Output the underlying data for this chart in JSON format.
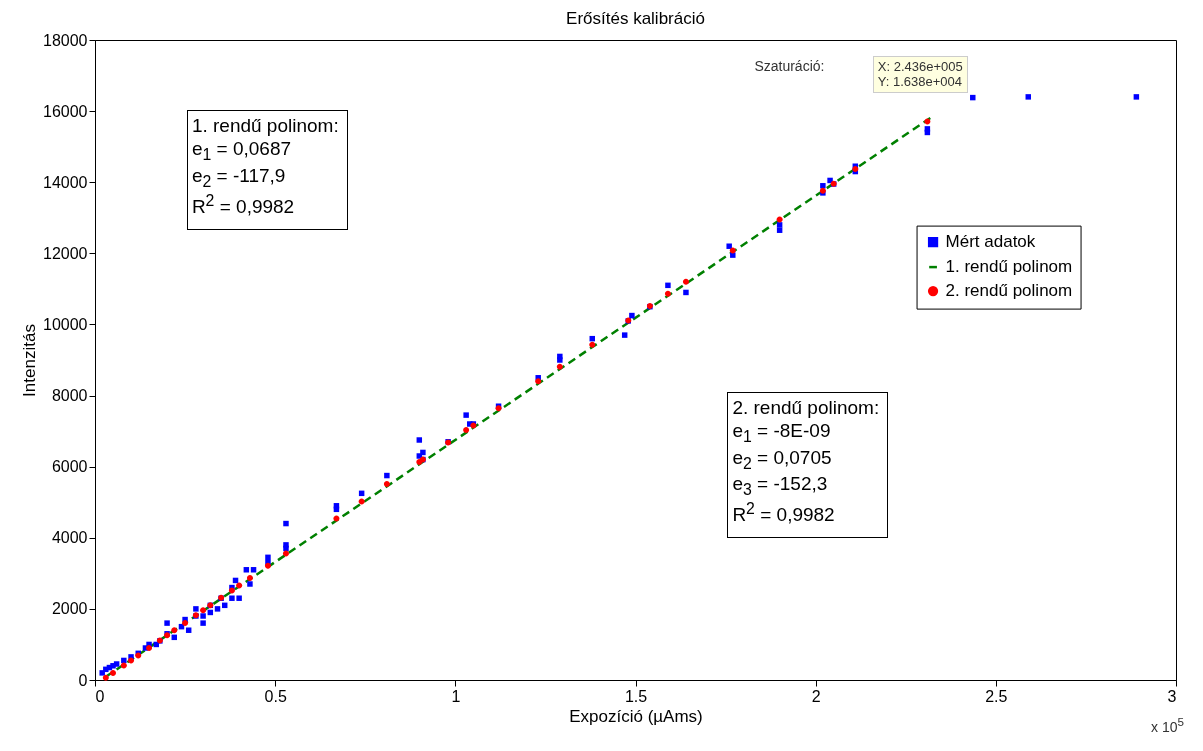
{
  "chart_data": {
    "type": "scatter",
    "title": "Erősítés kalibráció",
    "xlabel": "Expozíció (µAms)",
    "ylabel": "Intenzitás",
    "xlim": [
      0,
      3
    ],
    "xticks": [
      0,
      0.5,
      1,
      1.5,
      2,
      2.5,
      3
    ],
    "ylim": [
      0,
      18000
    ],
    "yticks": [
      0,
      2000,
      4000,
      6000,
      8000,
      10000,
      12000,
      14000,
      16000,
      18000
    ],
    "grid": false,
    "legend": "right",
    "series": [
      {
        "name": "Mért adatok",
        "type": "scatter",
        "marker": "square",
        "color": "#0000ff",
        "x": [
          0.02,
          0.03,
          0.04,
          0.05,
          0.06,
          0.08,
          0.1,
          0.12,
          0.14,
          0.15,
          0.17,
          0.18,
          0.2,
          0.2,
          0.22,
          0.24,
          0.25,
          0.26,
          0.28,
          0.28,
          0.3,
          0.3,
          0.32,
          0.32,
          0.34,
          0.35,
          0.36,
          0.38,
          0.38,
          0.4,
          0.39,
          0.42,
          0.44,
          0.43,
          0.48,
          0.48,
          0.53,
          0.53,
          0.53,
          0.67,
          0.67,
          0.74,
          0.81,
          0.9,
          0.9,
          0.91,
          0.91,
          0.98,
          1.03,
          1.04,
          1.05,
          1.12,
          1.23,
          1.29,
          1.29,
          1.38,
          1.47,
          1.48,
          1.49,
          1.54,
          1.59,
          1.64,
          1.76,
          1.77,
          1.9,
          1.9,
          2.02,
          2.02,
          2.04,
          2.05,
          2.11,
          2.11,
          2.31,
          2.31,
          2.436,
          2.59,
          2.89
        ],
        "values": [
          200,
          300,
          350,
          400,
          450,
          550,
          650,
          750,
          900,
          1000,
          1000,
          1100,
          1300,
          1600,
          1200,
          1500,
          1700,
          1400,
          1800,
          2000,
          1600,
          1800,
          1900,
          2100,
          2000,
          2300,
          2100,
          2300,
          2600,
          2300,
          2800,
          3100,
          3100,
          2700,
          3300,
          3450,
          3800,
          4400,
          3700,
          4800,
          4900,
          5250,
          5750,
          6300,
          6750,
          6400,
          6200,
          6700,
          7450,
          7200,
          7200,
          7700,
          8500,
          9100,
          9000,
          9600,
          9700,
          10100,
          10250,
          10500,
          11100,
          10900,
          12200,
          11950,
          12800,
          12650,
          13700,
          13900,
          14050,
          13950,
          14300,
          14450,
          15500,
          15400,
          16380,
          16400,
          16400
        ]
      },
      {
        "name": "1. rendű polinom",
        "type": "line",
        "marker": "none",
        "line_style": "dashed",
        "color": "#008000",
        "x": [
          0.03,
          2.32
        ],
        "values": [
          90,
          15820
        ]
      },
      {
        "name": "2. rendű polinom",
        "type": "scatter",
        "marker": "circle",
        "color": "#ff0000",
        "x": [
          0.03,
          0.05,
          0.08,
          0.1,
          0.12,
          0.15,
          0.18,
          0.2,
          0.22,
          0.25,
          0.28,
          0.3,
          0.32,
          0.35,
          0.38,
          0.4,
          0.43,
          0.48,
          0.53,
          0.67,
          0.74,
          0.81,
          0.9,
          0.91,
          0.98,
          1.03,
          1.05,
          1.12,
          1.23,
          1.29,
          1.38,
          1.48,
          1.54,
          1.59,
          1.64,
          1.77,
          1.9,
          2.02,
          2.05,
          2.11,
          2.31
        ],
        "values": [
          60,
          200,
          410,
          550,
          690,
          900,
          1110,
          1260,
          1400,
          1600,
          1820,
          1960,
          2100,
          2310,
          2520,
          2660,
          2870,
          3210,
          3560,
          4540,
          5020,
          5510,
          6130,
          6200,
          6680,
          7030,
          7160,
          7640,
          8400,
          8810,
          9430,
          10110,
          10520,
          10860,
          11200,
          12080,
          12950,
          13760,
          13960,
          14370,
          15710
        ]
      }
    ],
    "annotations": [
      "1. rendű polinom:\ne$_{1}$ = 0,0687\ne$_{2}$ = -117,9\nR$^{2}$ = 0,9982",
      "2. rendű polinom:\ne$_{1}$ = -8E-09\ne$_{2}$ = 0,0705\ne$_{3}$ = -152,3\nR$^{2}$ = 0,9982",
      "Szaturáció:",
      "x 10$^{5}$",
      {
        "text": "X: 2.436e+005\nY: 1.638e+004",
        "x": 2.436,
        "y": 16380
      }
    ]
  }
}
